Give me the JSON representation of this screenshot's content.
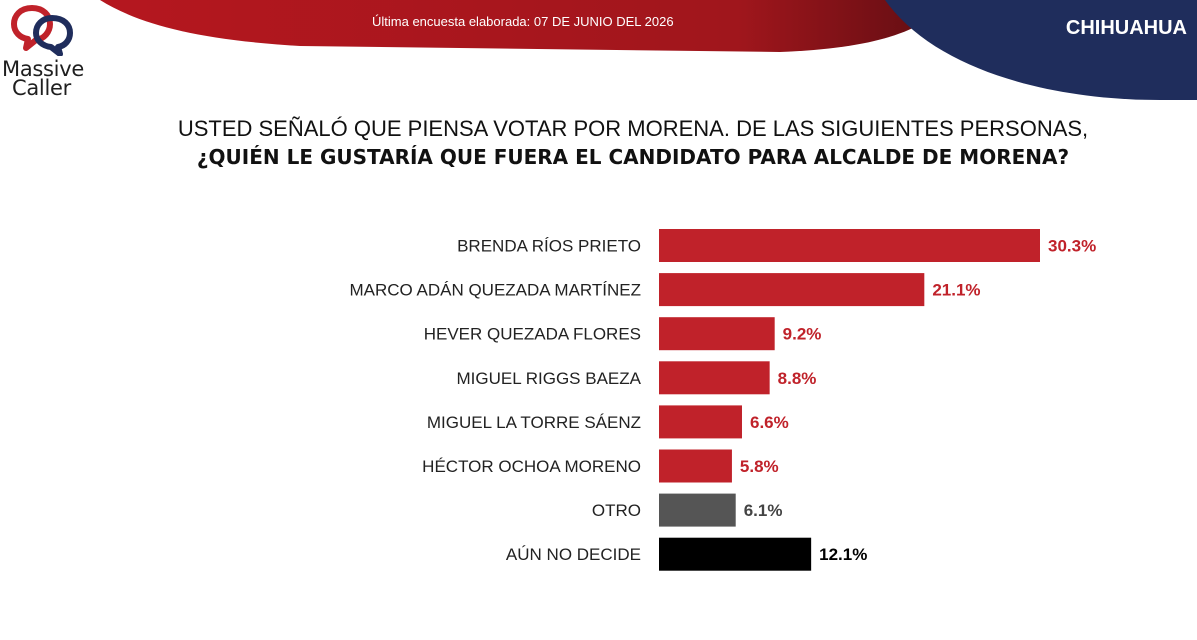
{
  "header": {
    "brand_line1": "Massive",
    "brand_line2": "Caller",
    "survey_date": "Última encuesta elaborada: 07 DE JUNIO DEL 2026",
    "state": "CHIHUAHUA",
    "colors": {
      "banner_red": "#b5171f",
      "banner_navy": "#1f2d5c"
    }
  },
  "question": {
    "line1": "USTED SEÑALÓ QUE PIENSA VOTAR POR MORENA. DE LAS SIGUIENTES PERSONAS,",
    "line2": "¿QUIÉN LE GUSTARÍA QUE FUERA EL CANDIDATO PARA ALCALDE DE MORENA?"
  },
  "chart_data": {
    "type": "bar",
    "orientation": "horizontal",
    "categories": [
      "BRENDA RÍOS PRIETO",
      "MARCO ADÁN QUEZADA MARTÍNEZ",
      "HEVER QUEZADA FLORES",
      "MIGUEL RIGGS BAEZA",
      "MIGUEL LA TORRE SÁENZ",
      "HÉCTOR OCHOA MORENO",
      "OTRO",
      "AÚN NO DECIDE"
    ],
    "values": [
      30.3,
      21.1,
      9.2,
      8.8,
      6.6,
      5.8,
      6.1,
      12.1
    ],
    "value_labels": [
      "30.3%",
      "21.1%",
      "9.2%",
      "8.8%",
      "6.6%",
      "5.8%",
      "6.1%",
      "12.1%"
    ],
    "bar_colors": [
      "#c0222a",
      "#c0222a",
      "#c0222a",
      "#c0222a",
      "#c0222a",
      "#c0222a",
      "#555555",
      "#000000"
    ],
    "label_colors": [
      "#c0222a",
      "#c0222a",
      "#c0222a",
      "#c0222a",
      "#c0222a",
      "#c0222a",
      "#444444",
      "#000000"
    ],
    "xlim": [
      0,
      31
    ],
    "grid": false,
    "legend": "none"
  }
}
